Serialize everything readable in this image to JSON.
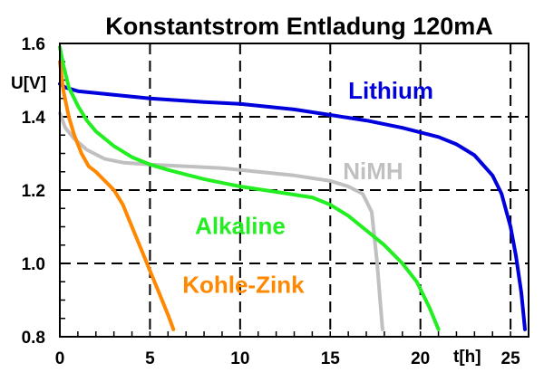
{
  "chart_data": {
    "type": "line",
    "title": "Konstantstrom Entladung 120mA",
    "xlabel": "t[h]",
    "ylabel": "U[V]",
    "xlim": [
      0,
      26
    ],
    "ylim": [
      0.8,
      1.6
    ],
    "xticks": [
      "0",
      "5",
      "10",
      "15",
      "20",
      "25"
    ],
    "yticks": [
      "0.8",
      "1.0",
      "1.2",
      "1.4",
      "1.6"
    ],
    "grid": true,
    "legend": "inline labels",
    "series": [
      {
        "name": "Lithium",
        "color": "#0000dd",
        "x": [
          0,
          0.3,
          1,
          2,
          3,
          5,
          8,
          10,
          13,
          15,
          17,
          19,
          21,
          22,
          23,
          24,
          24.5,
          25,
          25.3,
          25.6,
          25.8
        ],
        "y": [
          1.49,
          1.48,
          1.47,
          1.465,
          1.46,
          1.45,
          1.44,
          1.435,
          1.42,
          1.405,
          1.39,
          1.37,
          1.345,
          1.325,
          1.295,
          1.24,
          1.19,
          1.1,
          1.02,
          0.92,
          0.82
        ]
      },
      {
        "name": "NiMH",
        "color": "#c0c0c0",
        "x": [
          0,
          0.3,
          0.8,
          1.5,
          2.5,
          3.5,
          5,
          7,
          9,
          11,
          13,
          15,
          16,
          16.8,
          17.3,
          17.6,
          17.8,
          17.9
        ],
        "y": [
          1.41,
          1.37,
          1.34,
          1.31,
          1.285,
          1.275,
          1.27,
          1.265,
          1.26,
          1.25,
          1.24,
          1.225,
          1.21,
          1.19,
          1.14,
          1.0,
          0.88,
          0.82
        ]
      },
      {
        "name": "Alkaline",
        "color": "#22ee22",
        "x": [
          0,
          0.2,
          0.5,
          1,
          1.5,
          2,
          3,
          4,
          5,
          6,
          8,
          10,
          12,
          14,
          15,
          16,
          17,
          18,
          19,
          19.8,
          20.5,
          21
        ],
        "y": [
          1.59,
          1.54,
          1.48,
          1.43,
          1.39,
          1.36,
          1.32,
          1.29,
          1.27,
          1.255,
          1.23,
          1.21,
          1.195,
          1.18,
          1.16,
          1.13,
          1.09,
          1.05,
          1.0,
          0.95,
          0.88,
          0.82
        ]
      },
      {
        "name": "Kohle-Zink",
        "color": "#ff8800",
        "x": [
          0,
          0.2,
          0.5,
          0.8,
          1.2,
          1.6,
          2,
          2.5,
          3,
          3.5,
          4,
          4.5,
          5,
          5.5,
          6,
          6.3
        ],
        "y": [
          1.55,
          1.47,
          1.4,
          1.35,
          1.3,
          1.265,
          1.25,
          1.225,
          1.2,
          1.16,
          1.1,
          1.04,
          0.98,
          0.92,
          0.86,
          0.82
        ]
      }
    ]
  }
}
